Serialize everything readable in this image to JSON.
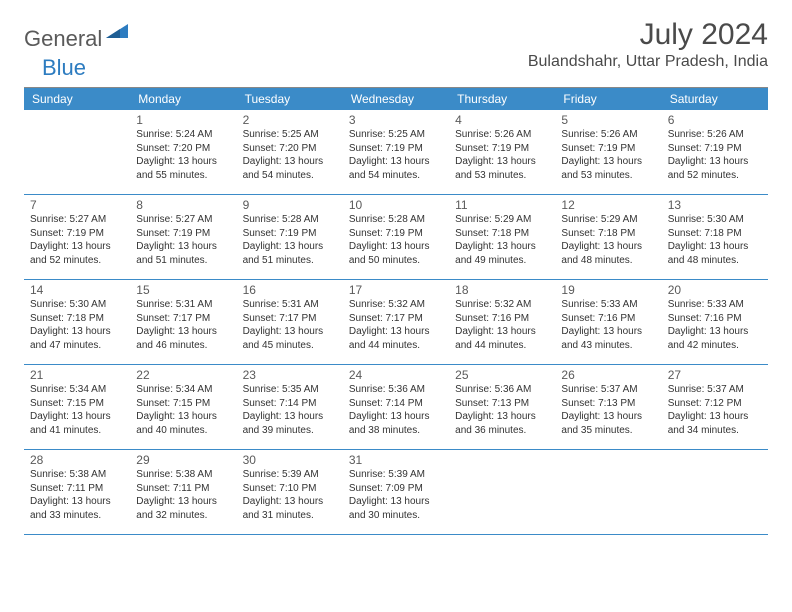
{
  "logo": {
    "word1": "General",
    "word2": "Blue"
  },
  "title": "July 2024",
  "location": "Bulandshahr, Uttar Pradesh, India",
  "colors": {
    "header_bg": "#3b8bc8",
    "header_text": "#ffffff",
    "rule": "#3b8bc8",
    "logo_gray": "#5a5a5a",
    "logo_blue": "#2d7cc0",
    "title_gray": "#4a4a4a",
    "body_text": "#333333"
  },
  "day_names": [
    "Sunday",
    "Monday",
    "Tuesday",
    "Wednesday",
    "Thursday",
    "Friday",
    "Saturday"
  ],
  "weeks": [
    [
      null,
      {
        "n": "1",
        "sr": "Sunrise: 5:24 AM",
        "ss": "Sunset: 7:20 PM",
        "d1": "Daylight: 13 hours",
        "d2": "and 55 minutes."
      },
      {
        "n": "2",
        "sr": "Sunrise: 5:25 AM",
        "ss": "Sunset: 7:20 PM",
        "d1": "Daylight: 13 hours",
        "d2": "and 54 minutes."
      },
      {
        "n": "3",
        "sr": "Sunrise: 5:25 AM",
        "ss": "Sunset: 7:19 PM",
        "d1": "Daylight: 13 hours",
        "d2": "and 54 minutes."
      },
      {
        "n": "4",
        "sr": "Sunrise: 5:26 AM",
        "ss": "Sunset: 7:19 PM",
        "d1": "Daylight: 13 hours",
        "d2": "and 53 minutes."
      },
      {
        "n": "5",
        "sr": "Sunrise: 5:26 AM",
        "ss": "Sunset: 7:19 PM",
        "d1": "Daylight: 13 hours",
        "d2": "and 53 minutes."
      },
      {
        "n": "6",
        "sr": "Sunrise: 5:26 AM",
        "ss": "Sunset: 7:19 PM",
        "d1": "Daylight: 13 hours",
        "d2": "and 52 minutes."
      }
    ],
    [
      {
        "n": "7",
        "sr": "Sunrise: 5:27 AM",
        "ss": "Sunset: 7:19 PM",
        "d1": "Daylight: 13 hours",
        "d2": "and 52 minutes."
      },
      {
        "n": "8",
        "sr": "Sunrise: 5:27 AM",
        "ss": "Sunset: 7:19 PM",
        "d1": "Daylight: 13 hours",
        "d2": "and 51 minutes."
      },
      {
        "n": "9",
        "sr": "Sunrise: 5:28 AM",
        "ss": "Sunset: 7:19 PM",
        "d1": "Daylight: 13 hours",
        "d2": "and 51 minutes."
      },
      {
        "n": "10",
        "sr": "Sunrise: 5:28 AM",
        "ss": "Sunset: 7:19 PM",
        "d1": "Daylight: 13 hours",
        "d2": "and 50 minutes."
      },
      {
        "n": "11",
        "sr": "Sunrise: 5:29 AM",
        "ss": "Sunset: 7:18 PM",
        "d1": "Daylight: 13 hours",
        "d2": "and 49 minutes."
      },
      {
        "n": "12",
        "sr": "Sunrise: 5:29 AM",
        "ss": "Sunset: 7:18 PM",
        "d1": "Daylight: 13 hours",
        "d2": "and 48 minutes."
      },
      {
        "n": "13",
        "sr": "Sunrise: 5:30 AM",
        "ss": "Sunset: 7:18 PM",
        "d1": "Daylight: 13 hours",
        "d2": "and 48 minutes."
      }
    ],
    [
      {
        "n": "14",
        "sr": "Sunrise: 5:30 AM",
        "ss": "Sunset: 7:18 PM",
        "d1": "Daylight: 13 hours",
        "d2": "and 47 minutes."
      },
      {
        "n": "15",
        "sr": "Sunrise: 5:31 AM",
        "ss": "Sunset: 7:17 PM",
        "d1": "Daylight: 13 hours",
        "d2": "and 46 minutes."
      },
      {
        "n": "16",
        "sr": "Sunrise: 5:31 AM",
        "ss": "Sunset: 7:17 PM",
        "d1": "Daylight: 13 hours",
        "d2": "and 45 minutes."
      },
      {
        "n": "17",
        "sr": "Sunrise: 5:32 AM",
        "ss": "Sunset: 7:17 PM",
        "d1": "Daylight: 13 hours",
        "d2": "and 44 minutes."
      },
      {
        "n": "18",
        "sr": "Sunrise: 5:32 AM",
        "ss": "Sunset: 7:16 PM",
        "d1": "Daylight: 13 hours",
        "d2": "and 44 minutes."
      },
      {
        "n": "19",
        "sr": "Sunrise: 5:33 AM",
        "ss": "Sunset: 7:16 PM",
        "d1": "Daylight: 13 hours",
        "d2": "and 43 minutes."
      },
      {
        "n": "20",
        "sr": "Sunrise: 5:33 AM",
        "ss": "Sunset: 7:16 PM",
        "d1": "Daylight: 13 hours",
        "d2": "and 42 minutes."
      }
    ],
    [
      {
        "n": "21",
        "sr": "Sunrise: 5:34 AM",
        "ss": "Sunset: 7:15 PM",
        "d1": "Daylight: 13 hours",
        "d2": "and 41 minutes."
      },
      {
        "n": "22",
        "sr": "Sunrise: 5:34 AM",
        "ss": "Sunset: 7:15 PM",
        "d1": "Daylight: 13 hours",
        "d2": "and 40 minutes."
      },
      {
        "n": "23",
        "sr": "Sunrise: 5:35 AM",
        "ss": "Sunset: 7:14 PM",
        "d1": "Daylight: 13 hours",
        "d2": "and 39 minutes."
      },
      {
        "n": "24",
        "sr": "Sunrise: 5:36 AM",
        "ss": "Sunset: 7:14 PM",
        "d1": "Daylight: 13 hours",
        "d2": "and 38 minutes."
      },
      {
        "n": "25",
        "sr": "Sunrise: 5:36 AM",
        "ss": "Sunset: 7:13 PM",
        "d1": "Daylight: 13 hours",
        "d2": "and 36 minutes."
      },
      {
        "n": "26",
        "sr": "Sunrise: 5:37 AM",
        "ss": "Sunset: 7:13 PM",
        "d1": "Daylight: 13 hours",
        "d2": "and 35 minutes."
      },
      {
        "n": "27",
        "sr": "Sunrise: 5:37 AM",
        "ss": "Sunset: 7:12 PM",
        "d1": "Daylight: 13 hours",
        "d2": "and 34 minutes."
      }
    ],
    [
      {
        "n": "28",
        "sr": "Sunrise: 5:38 AM",
        "ss": "Sunset: 7:11 PM",
        "d1": "Daylight: 13 hours",
        "d2": "and 33 minutes."
      },
      {
        "n": "29",
        "sr": "Sunrise: 5:38 AM",
        "ss": "Sunset: 7:11 PM",
        "d1": "Daylight: 13 hours",
        "d2": "and 32 minutes."
      },
      {
        "n": "30",
        "sr": "Sunrise: 5:39 AM",
        "ss": "Sunset: 7:10 PM",
        "d1": "Daylight: 13 hours",
        "d2": "and 31 minutes."
      },
      {
        "n": "31",
        "sr": "Sunrise: 5:39 AM",
        "ss": "Sunset: 7:09 PM",
        "d1": "Daylight: 13 hours",
        "d2": "and 30 minutes."
      },
      null,
      null,
      null
    ]
  ]
}
